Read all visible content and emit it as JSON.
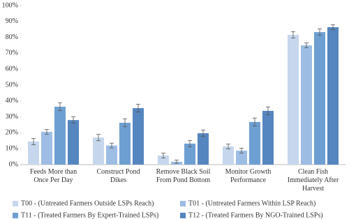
{
  "chart_data": {
    "type": "bar",
    "categories": [
      "Feeds More than\nOnce Per Day",
      "Construct Pond\nDikes",
      "Remove Black Soil\nFrom Pond Bottom",
      "Monitor Growth\nPerformance",
      "Clean Fish\nImmediately After\nHarvest"
    ],
    "series": [
      {
        "name": "T00 - (Untreated Farmers Outside LSPs Reach)",
        "color": "#c6d7ed",
        "values": [
          14.5,
          17,
          5.7,
          11.4,
          81.6
        ],
        "errors": [
          2,
          2,
          1.5,
          1.5,
          2
        ]
      },
      {
        "name": "T01 - (Untreated Farmers Within LSP Reach)",
        "color": "#9dbde4",
        "values": [
          20.6,
          12,
          1.8,
          8.8,
          75
        ],
        "errors": [
          1.5,
          1.5,
          1,
          1.5,
          1.5
        ]
      },
      {
        "name": "T11 - (Treated Farmers By Expert-Trained LSPs)",
        "color": "#6e9fd2",
        "values": [
          36.4,
          26.3,
          13.2,
          26.8,
          83.3
        ],
        "errors": [
          2.5,
          2.5,
          2,
          2.5,
          2
        ]
      },
      {
        "name": "T12 - (Treated Farmers By NGO-Trained LSPs)",
        "color": "#5586bf",
        "values": [
          28,
          35.5,
          19.7,
          33.8,
          86.4
        ],
        "errors": [
          2,
          2.5,
          2,
          2.5,
          1.5
        ]
      }
    ],
    "ylim": [
      0,
      100
    ],
    "yticks": [
      {
        "value": 0,
        "label": "0%"
      },
      {
        "value": 10,
        "label": "10%"
      },
      {
        "value": 20,
        "label": "20%"
      },
      {
        "value": 30,
        "label": "30%"
      },
      {
        "value": 40,
        "label": "40%"
      },
      {
        "value": 50,
        "label": "50%"
      },
      {
        "value": 60,
        "label": "60%"
      },
      {
        "value": 70,
        "label": "70%"
      },
      {
        "value": 80,
        "label": "80%"
      },
      {
        "value": 90,
        "label": "90%"
      },
      {
        "value": 100,
        "label": "100%"
      }
    ],
    "grid": false,
    "legend": "bottom"
  }
}
